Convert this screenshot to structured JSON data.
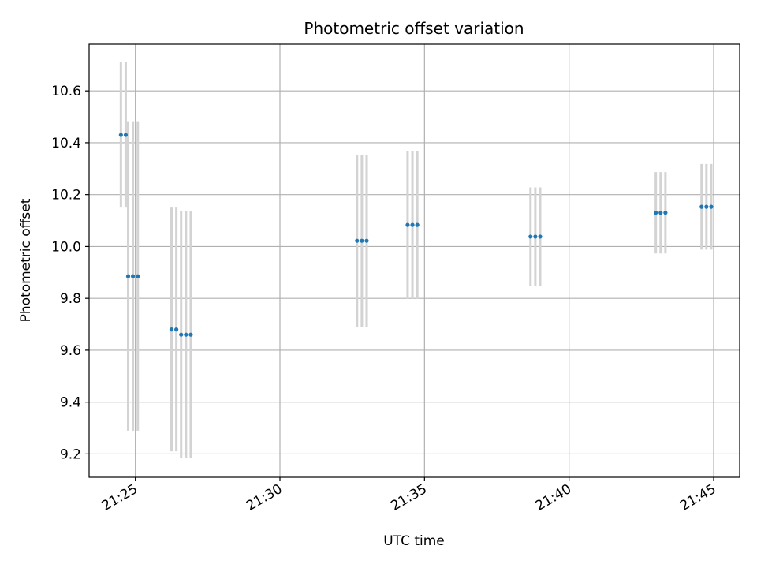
{
  "chart_data": {
    "type": "scatter",
    "title": "Photometric offset variation",
    "xlabel": "UTC time",
    "ylabel": "Photometric offset",
    "x_axis_type": "time",
    "xlim": [
      "21:23:24",
      "21:45:54"
    ],
    "ylim": [
      9.11,
      10.78
    ],
    "x_ticks": [
      "21:25",
      "21:30",
      "21:35",
      "21:40",
      "21:45"
    ],
    "y_ticks": [
      "9.2",
      "9.4",
      "9.6",
      "9.8",
      "10.0",
      "10.2",
      "10.4",
      "10.6"
    ],
    "grid": true,
    "legend": "none",
    "colors": {
      "points": "#1f77b4",
      "error_bars": "#d3d3d3",
      "grid": "#b0b0b0"
    },
    "series": [
      {
        "points": [
          {
            "x": "21:24:30",
            "y": 10.43,
            "yerr": 0.28
          },
          {
            "x": "21:24:40",
            "y": 10.43,
            "yerr": 0.28
          },
          {
            "x": "21:24:45",
            "y": 9.885,
            "yerr": 0.595
          },
          {
            "x": "21:24:55",
            "y": 9.885,
            "yerr": 0.595
          },
          {
            "x": "21:25:05",
            "y": 9.885,
            "yerr": 0.595
          },
          {
            "x": "21:26:15",
            "y": 9.68,
            "yerr": 0.47
          },
          {
            "x": "21:26:25",
            "y": 9.68,
            "yerr": 0.47
          },
          {
            "x": "21:26:35",
            "y": 9.66,
            "yerr": 0.475
          },
          {
            "x": "21:26:45",
            "y": 9.66,
            "yerr": 0.475
          },
          {
            "x": "21:26:55",
            "y": 9.66,
            "yerr": 0.475
          },
          {
            "x": "21:32:40",
            "y": 10.022,
            "yerr": 0.332
          },
          {
            "x": "21:32:50",
            "y": 10.022,
            "yerr": 0.332
          },
          {
            "x": "21:33:00",
            "y": 10.022,
            "yerr": 0.332
          },
          {
            "x": "21:34:25",
            "y": 10.083,
            "yerr": 0.285
          },
          {
            "x": "21:34:35",
            "y": 10.083,
            "yerr": 0.285
          },
          {
            "x": "21:34:45",
            "y": 10.083,
            "yerr": 0.285
          },
          {
            "x": "21:38:40",
            "y": 10.038,
            "yerr": 0.19
          },
          {
            "x": "21:38:50",
            "y": 10.038,
            "yerr": 0.19
          },
          {
            "x": "21:39:00",
            "y": 10.038,
            "yerr": 0.19
          },
          {
            "x": "21:43:00",
            "y": 10.13,
            "yerr": 0.157
          },
          {
            "x": "21:43:10",
            "y": 10.13,
            "yerr": 0.157
          },
          {
            "x": "21:43:20",
            "y": 10.13,
            "yerr": 0.157
          },
          {
            "x": "21:44:35",
            "y": 10.153,
            "yerr": 0.165
          },
          {
            "x": "21:44:45",
            "y": 10.153,
            "yerr": 0.165
          },
          {
            "x": "21:44:55",
            "y": 10.153,
            "yerr": 0.165
          }
        ]
      }
    ]
  }
}
